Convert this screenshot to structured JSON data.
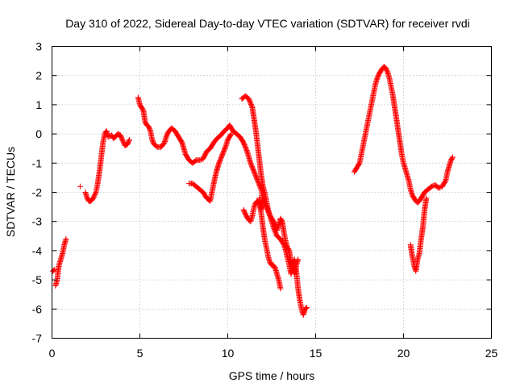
{
  "chart_data": {
    "type": "scatter",
    "title": "Day 310 of 2022, Sidereal Day-to-day VTEC variation (SDTVAR) for receiver rvdi",
    "xlabel": "GPS time / hours",
    "ylabel": "SDTVAR / TECUs",
    "xlim": [
      0,
      25
    ],
    "ylim": [
      -7,
      3
    ],
    "xticks": [
      "0",
      "5",
      "10",
      "15",
      "20",
      "25"
    ],
    "yticks": [
      "3",
      "2",
      "1",
      "0",
      "-1",
      "-2",
      "-3",
      "-4",
      "-5",
      "-6",
      "-7"
    ],
    "grid": true,
    "legend": "none",
    "marker": "+",
    "colors": {
      "series": "#ff0000",
      "axes": "#000000",
      "grid": "#a0a0a0"
    },
    "series": [
      {
        "color": "#ff0000",
        "tracks": [
          [
            [
              0.05,
              -4.7
            ],
            [
              0.15,
              -4.65
            ]
          ],
          [
            [
              0.2,
              -5.2
            ],
            [
              0.3,
              -5.0
            ],
            [
              0.35,
              -4.7
            ],
            [
              0.4,
              -4.5
            ],
            [
              0.5,
              -4.3
            ],
            [
              0.6,
              -4.1
            ],
            [
              0.7,
              -3.8
            ],
            [
              0.8,
              -3.6
            ]
          ],
          [
            [
              1.6,
              -1.8
            ]
          ],
          [
            [
              1.9,
              -2.0
            ],
            [
              2.0,
              -2.2
            ],
            [
              2.1,
              -2.3
            ],
            [
              2.2,
              -2.3
            ],
            [
              2.35,
              -2.2
            ],
            [
              2.5,
              -2.0
            ],
            [
              2.6,
              -1.7
            ],
            [
              2.7,
              -1.3
            ],
            [
              2.8,
              -0.8
            ],
            [
              2.9,
              -0.3
            ],
            [
              3.0,
              0.0
            ],
            [
              3.1,
              0.1
            ],
            [
              3.2,
              -0.1
            ],
            [
              3.4,
              -0.05
            ],
            [
              3.5,
              -0.15
            ],
            [
              3.6,
              -0.1
            ],
            [
              3.75,
              0.0
            ],
            [
              3.9,
              -0.05
            ],
            [
              4.0,
              -0.2
            ],
            [
              4.15,
              -0.4
            ],
            [
              4.3,
              -0.35
            ],
            [
              4.4,
              -0.2
            ]
          ],
          [
            [
              4.9,
              1.25
            ],
            [
              5.0,
              1.0
            ],
            [
              5.1,
              0.9
            ],
            [
              5.2,
              0.8
            ],
            [
              5.3,
              0.4
            ],
            [
              5.4,
              0.3
            ],
            [
              5.5,
              0.25
            ],
            [
              5.6,
              0.1
            ],
            [
              5.7,
              -0.2
            ],
            [
              5.8,
              -0.35
            ],
            [
              6.0,
              -0.45
            ],
            [
              6.2,
              -0.45
            ],
            [
              6.4,
              -0.3
            ],
            [
              6.5,
              -0.1
            ],
            [
              6.6,
              0.05
            ],
            [
              6.8,
              0.2
            ],
            [
              7.0,
              0.1
            ],
            [
              7.2,
              -0.1
            ],
            [
              7.4,
              -0.3
            ],
            [
              7.5,
              -0.5
            ],
            [
              7.6,
              -0.7
            ],
            [
              7.8,
              -0.9
            ],
            [
              8.0,
              -1.0
            ],
            [
              8.2,
              -0.9
            ],
            [
              8.4,
              -0.9
            ],
            [
              8.6,
              -0.85
            ],
            [
              8.8,
              -0.6
            ],
            [
              9.0,
              -0.5
            ],
            [
              9.2,
              -0.3
            ],
            [
              9.4,
              -0.15
            ],
            [
              9.6,
              -0.05
            ],
            [
              9.8,
              0.1
            ],
            [
              10.0,
              0.2
            ],
            [
              10.1,
              0.3
            ],
            [
              10.2,
              0.2
            ],
            [
              10.3,
              0.1
            ],
            [
              10.5,
              0.0
            ],
            [
              10.7,
              -0.1
            ],
            [
              10.9,
              -0.3
            ],
            [
              11.1,
              -0.6
            ],
            [
              11.3,
              -1.0
            ],
            [
              11.5,
              -1.3
            ],
            [
              11.7,
              -1.6
            ],
            [
              11.9,
              -1.9
            ],
            [
              12.0,
              -2.2
            ],
            [
              12.2,
              -2.5
            ],
            [
              12.4,
              -2.8
            ],
            [
              12.6,
              -3.2
            ],
            [
              12.8,
              -3.5
            ],
            [
              13.0,
              -3.6
            ],
            [
              13.2,
              -3.8
            ],
            [
              13.3,
              -4.0
            ],
            [
              13.5,
              -4.5
            ],
            [
              13.6,
              -4.8
            ],
            [
              13.7,
              -4.5
            ],
            [
              13.8,
              -4.3
            ],
            [
              13.9,
              -4.7
            ],
            [
              14.0,
              -5.3
            ],
            [
              14.1,
              -5.7
            ],
            [
              14.2,
              -6.0
            ],
            [
              14.3,
              -6.2
            ],
            [
              14.4,
              -6.0
            ],
            [
              14.5,
              -5.95
            ]
          ],
          [
            [
              7.8,
              -1.7
            ],
            [
              8.0,
              -1.7
            ],
            [
              8.2,
              -1.8
            ],
            [
              8.4,
              -1.9
            ],
            [
              8.6,
              -2.0
            ],
            [
              8.8,
              -2.2
            ],
            [
              9.0,
              -2.3
            ],
            [
              9.1,
              -2.0
            ],
            [
              9.2,
              -1.7
            ],
            [
              9.35,
              -1.3
            ],
            [
              9.5,
              -1.0
            ],
            [
              9.7,
              -0.7
            ],
            [
              9.9,
              -0.4
            ],
            [
              10.0,
              -0.2
            ],
            [
              10.2,
              0.0
            ]
          ],
          [
            [
              10.8,
              1.2
            ],
            [
              11.0,
              1.3
            ],
            [
              11.2,
              1.2
            ],
            [
              11.4,
              0.9
            ],
            [
              11.5,
              0.5
            ],
            [
              11.6,
              0.1
            ],
            [
              11.7,
              -0.4
            ],
            [
              11.8,
              -0.9
            ],
            [
              11.9,
              -1.4
            ],
            [
              12.0,
              -1.8
            ],
            [
              12.1,
              -2.0
            ],
            [
              12.2,
              -2.3
            ],
            [
              12.3,
              -2.6
            ],
            [
              12.4,
              -2.8
            ],
            [
              12.5,
              -2.9
            ],
            [
              12.6,
              -3.0
            ],
            [
              12.7,
              -3.1
            ],
            [
              12.8,
              -3.3
            ],
            [
              12.9,
              -3.1
            ],
            [
              13.0,
              -2.9
            ],
            [
              13.1,
              -3.0
            ],
            [
              13.2,
              -3.4
            ],
            [
              13.3,
              -3.7
            ],
            [
              13.4,
              -3.9
            ],
            [
              13.5,
              -4.0
            ],
            [
              13.6,
              -4.4
            ],
            [
              13.7,
              -4.6
            ],
            [
              13.8,
              -4.8
            ],
            [
              13.9,
              -4.5
            ],
            [
              14.0,
              -4.3
            ]
          ],
          [
            [
              10.9,
              -2.6
            ],
            [
              11.0,
              -2.75
            ],
            [
              11.1,
              -2.85
            ],
            [
              11.2,
              -2.95
            ],
            [
              11.3,
              -3.0
            ],
            [
              11.4,
              -2.8
            ],
            [
              11.5,
              -2.5
            ],
            [
              11.6,
              -2.35
            ],
            [
              11.7,
              -2.3
            ],
            [
              11.8,
              -2.4
            ],
            [
              11.9,
              -2.7
            ],
            [
              12.0,
              -3.2
            ],
            [
              12.1,
              -3.6
            ],
            [
              12.2,
              -3.9
            ],
            [
              12.3,
              -4.2
            ],
            [
              12.4,
              -4.4
            ],
            [
              12.5,
              -4.5
            ],
            [
              12.6,
              -4.5
            ],
            [
              12.7,
              -4.6
            ],
            [
              12.8,
              -4.8
            ],
            [
              12.9,
              -5.0
            ],
            [
              13.0,
              -5.3
            ]
          ],
          [
            [
              11.8,
              -2.2
            ],
            [
              11.9,
              -2.6
            ],
            [
              11.95,
              -2.3
            ],
            [
              12.0,
              -2.5
            ]
          ],
          [
            [
              17.2,
              -1.3
            ],
            [
              17.3,
              -1.2
            ],
            [
              17.4,
              -1.1
            ],
            [
              17.5,
              -1.0
            ],
            [
              17.6,
              -0.7
            ],
            [
              17.7,
              -0.4
            ],
            [
              17.8,
              -0.1
            ],
            [
              17.9,
              0.2
            ],
            [
              18.0,
              0.5
            ],
            [
              18.1,
              0.8
            ],
            [
              18.2,
              1.1
            ],
            [
              18.3,
              1.4
            ],
            [
              18.4,
              1.7
            ],
            [
              18.5,
              1.9
            ],
            [
              18.6,
              2.05
            ],
            [
              18.7,
              2.15
            ],
            [
              18.8,
              2.25
            ],
            [
              18.9,
              2.3
            ],
            [
              19.0,
              2.25
            ],
            [
              19.1,
              2.1
            ],
            [
              19.2,
              1.9
            ],
            [
              19.3,
              1.6
            ],
            [
              19.4,
              1.3
            ],
            [
              19.5,
              0.9
            ],
            [
              19.6,
              0.5
            ],
            [
              19.7,
              0.1
            ],
            [
              19.8,
              -0.3
            ],
            [
              19.9,
              -0.7
            ],
            [
              20.0,
              -1.0
            ],
            [
              20.1,
              -1.2
            ],
            [
              20.2,
              -1.4
            ],
            [
              20.3,
              -1.6
            ],
            [
              20.4,
              -1.9
            ],
            [
              20.5,
              -2.1
            ],
            [
              20.6,
              -2.2
            ],
            [
              20.7,
              -2.3
            ],
            [
              20.8,
              -2.35
            ],
            [
              20.9,
              -2.3
            ],
            [
              21.0,
              -2.2
            ],
            [
              21.1,
              -2.1
            ],
            [
              21.2,
              -2.0
            ],
            [
              21.3,
              -1.95
            ],
            [
              21.4,
              -1.9
            ],
            [
              21.6,
              -1.8
            ],
            [
              21.8,
              -1.75
            ],
            [
              22.0,
              -1.85
            ],
            [
              22.2,
              -1.8
            ],
            [
              22.4,
              -1.6
            ],
            [
              22.5,
              -1.3
            ],
            [
              22.6,
              -1.1
            ],
            [
              22.7,
              -0.9
            ],
            [
              22.8,
              -0.8
            ]
          ],
          [
            [
              20.4,
              -3.8
            ],
            [
              20.5,
              -4.2
            ],
            [
              20.6,
              -4.5
            ],
            [
              20.7,
              -4.7
            ],
            [
              20.8,
              -4.3
            ],
            [
              20.9,
              -4.1
            ],
            [
              21.0,
              -3.6
            ],
            [
              21.1,
              -3.2
            ],
            [
              21.2,
              -2.6
            ],
            [
              21.3,
              -2.2
            ]
          ]
        ]
      }
    ]
  }
}
